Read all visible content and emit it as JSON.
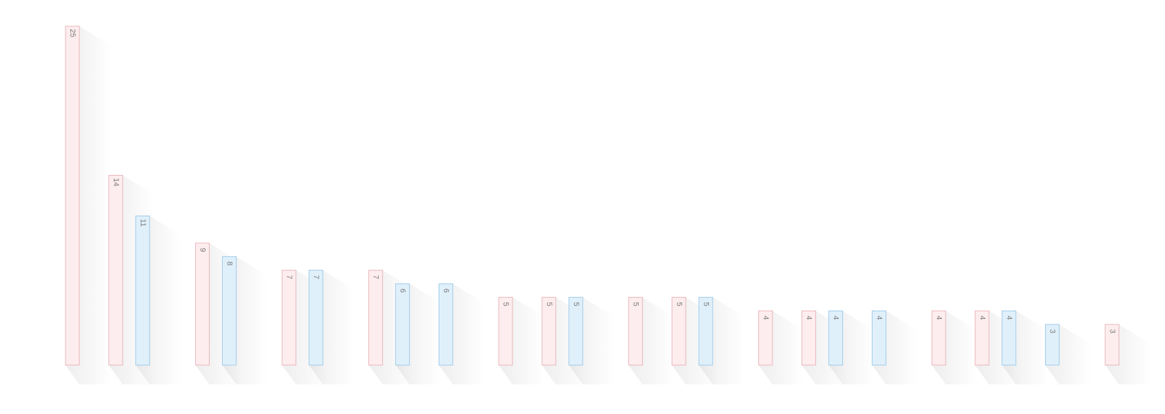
{
  "chart_data": {
    "type": "bar",
    "categories": [
      null,
      null,
      null,
      null,
      null,
      null,
      null,
      null,
      null,
      null,
      null,
      null,
      null,
      null,
      null,
      null,
      null,
      null,
      null,
      null,
      null,
      null,
      null,
      null,
      null
    ],
    "series": [
      {
        "color": "#e9b5ba",
        "values": [
          25,
          14,
          null,
          9,
          null,
          7,
          null,
          7,
          null,
          null,
          5,
          5,
          null,
          5,
          5,
          null,
          4,
          4,
          null,
          null,
          4,
          4,
          null,
          null,
          3
        ]
      },
      {
        "color": "#9ecbea",
        "values": [
          null,
          11,
          null,
          8,
          null,
          7,
          null,
          6,
          6,
          null,
          null,
          5,
          null,
          null,
          5,
          null,
          null,
          4,
          4,
          null,
          null,
          4,
          3,
          null,
          null
        ]
      }
    ],
    "ylim": [
      0,
      25
    ]
  }
}
